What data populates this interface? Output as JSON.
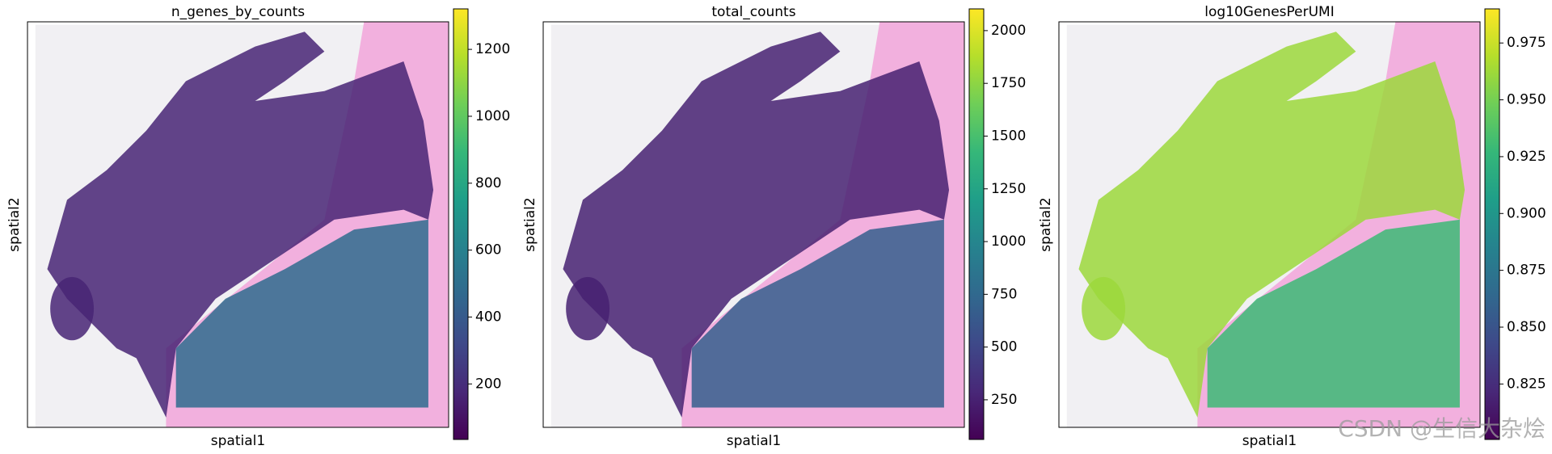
{
  "chart_data": [
    {
      "type": "spatial",
      "title": "n_genes_by_counts",
      "xlabel": "spatial1",
      "ylabel": "spatial2",
      "colormap": "viridis",
      "clim": [
        34,
        1321
      ],
      "cticks": [
        200,
        400,
        600,
        800,
        1000,
        1200
      ]
    },
    {
      "type": "spatial",
      "title": "total_counts",
      "xlabel": "spatial1",
      "ylabel": "spatial2",
      "colormap": "viridis",
      "clim": [
        62,
        2103
      ],
      "cticks": [
        250,
        500,
        750,
        1000,
        1250,
        1500,
        1750,
        2000
      ]
    },
    {
      "type": "spatial",
      "title": "log10GenesPerUMI",
      "xlabel": "spatial1",
      "ylabel": "spatial2",
      "colormap": "viridis",
      "clim": [
        0.8006,
        0.99
      ],
      "cticks": [
        0.825,
        {
          "value": 0.85,
          "label": "0.850"
        },
        0.875,
        {
          "value": 0.9,
          "label": "0.900"
        },
        0.925,
        {
          "value": 0.95,
          "label": "0.950"
        },
        0.975
      ]
    }
  ],
  "watermark": "CSDN @生信大杂烩"
}
